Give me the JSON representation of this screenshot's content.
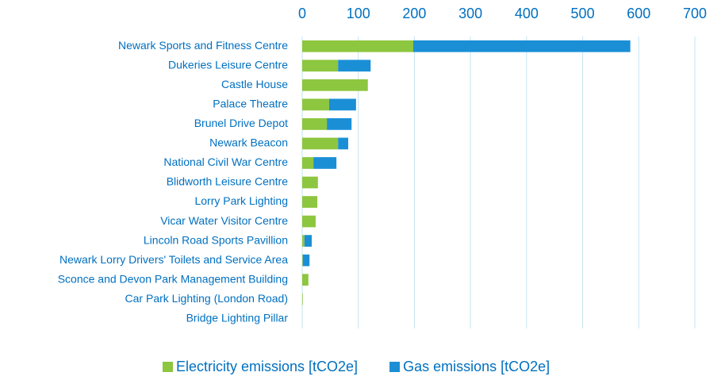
{
  "chart_data": {
    "type": "bar",
    "orientation": "horizontal",
    "stacked": true,
    "categories": [
      "Newark Sports and Fitness Centre",
      "Dukeries Leisure Centre",
      "Castle House",
      "Palace Theatre",
      "Brunel Drive Depot",
      "Newark Beacon",
      "National Civil War Centre",
      "Blidworth Leisure Centre",
      "Lorry Park Lighting",
      "Vicar Water Visitor Centre",
      "Lincoln Road Sports Pavillion",
      "Newark Lorry Drivers' Toilets and Service Area",
      "Sconce and Devon Park Management Building",
      "Car Park Lighting (London Road)",
      "Bridge Lighting Pillar"
    ],
    "series": [
      {
        "name": "Electricity emissions [tCO2e]",
        "color": "#8dc63f",
        "values": [
          198,
          64,
          117,
          48,
          44,
          64,
          20,
          28,
          27,
          24,
          4,
          1,
          11,
          1,
          0
        ]
      },
      {
        "name": "Gas emissions [tCO2e]",
        "color": "#1a8fd6",
        "values": [
          387,
          58,
          0,
          48,
          44,
          18,
          41,
          0,
          0,
          0,
          13,
          12,
          0,
          0,
          0
        ]
      }
    ],
    "xlim": [
      0,
      700
    ],
    "xticks": [
      0,
      100,
      200,
      300,
      400,
      500,
      600,
      700
    ],
    "grid": true,
    "legend": "bottom"
  }
}
